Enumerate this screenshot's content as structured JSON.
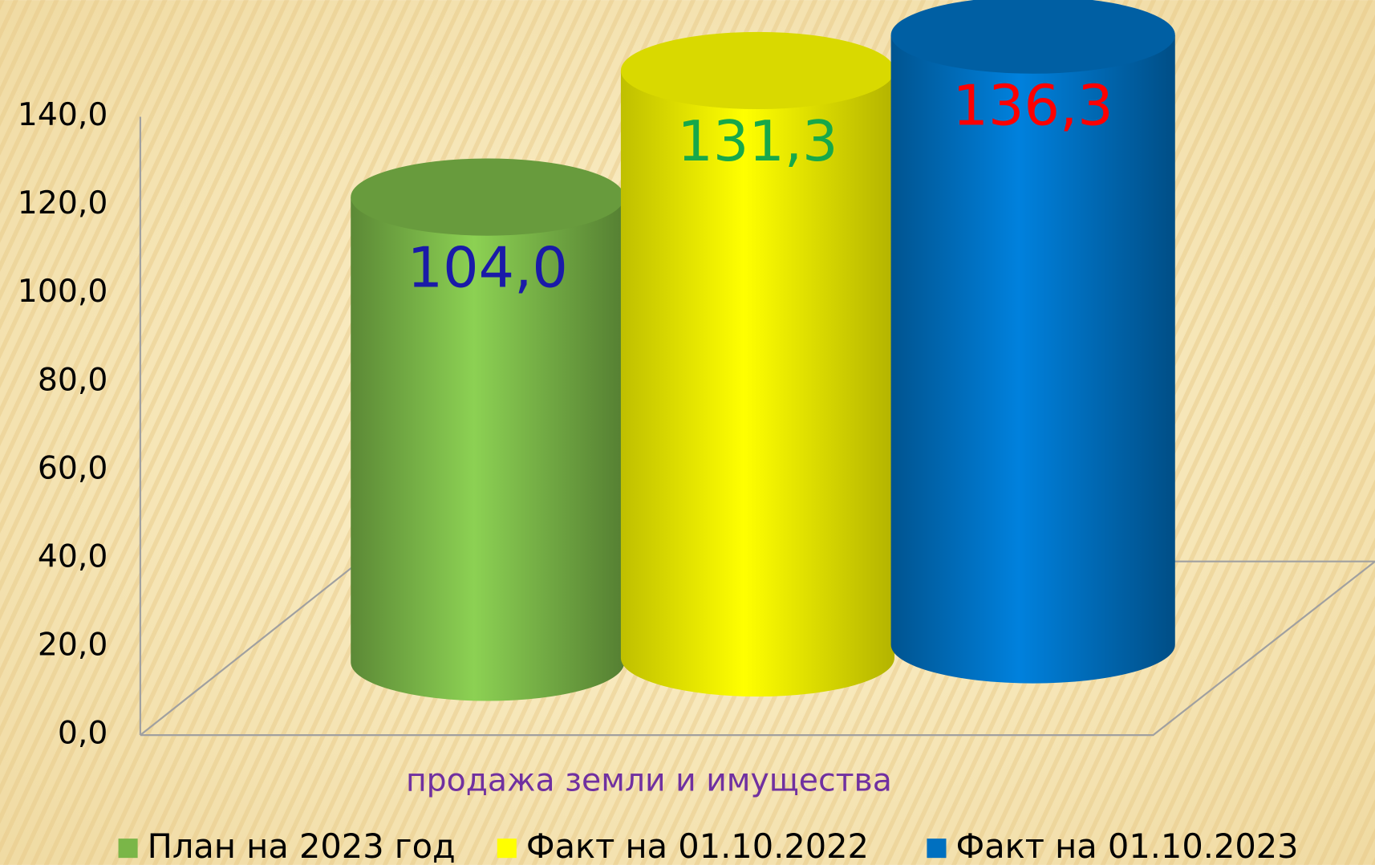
{
  "chart_data": {
    "type": "cylinder",
    "categories": [
      "продажа земли и имущества"
    ],
    "series": [
      {
        "name": "План на 2023 год",
        "color": "#7ab648",
        "values": [
          104.0
        ],
        "value_labels": [
          "104,0"
        ]
      },
      {
        "name": "Факт на 01.10.2022",
        "color": "#ffff00",
        "values": [
          131.3
        ],
        "value_labels": [
          "131,3"
        ]
      },
      {
        "name": "Факт на 01.10.2023",
        "color": "#0070c0",
        "values": [
          136.3
        ],
        "value_labels": [
          "136,3"
        ]
      }
    ],
    "ylim": [
      0,
      140
    ],
    "yticks": [
      {
        "value": 0,
        "label": "0,0"
      },
      {
        "value": 20,
        "label": "20,0"
      },
      {
        "value": 40,
        "label": "40,0"
      },
      {
        "value": 60,
        "label": "60,0"
      },
      {
        "value": 80,
        "label": "80,0"
      },
      {
        "value": 100,
        "label": "100,0"
      },
      {
        "value": 120,
        "label": "120,0"
      },
      {
        "value": 140,
        "label": "140,0"
      }
    ],
    "legend": "bottom"
  }
}
